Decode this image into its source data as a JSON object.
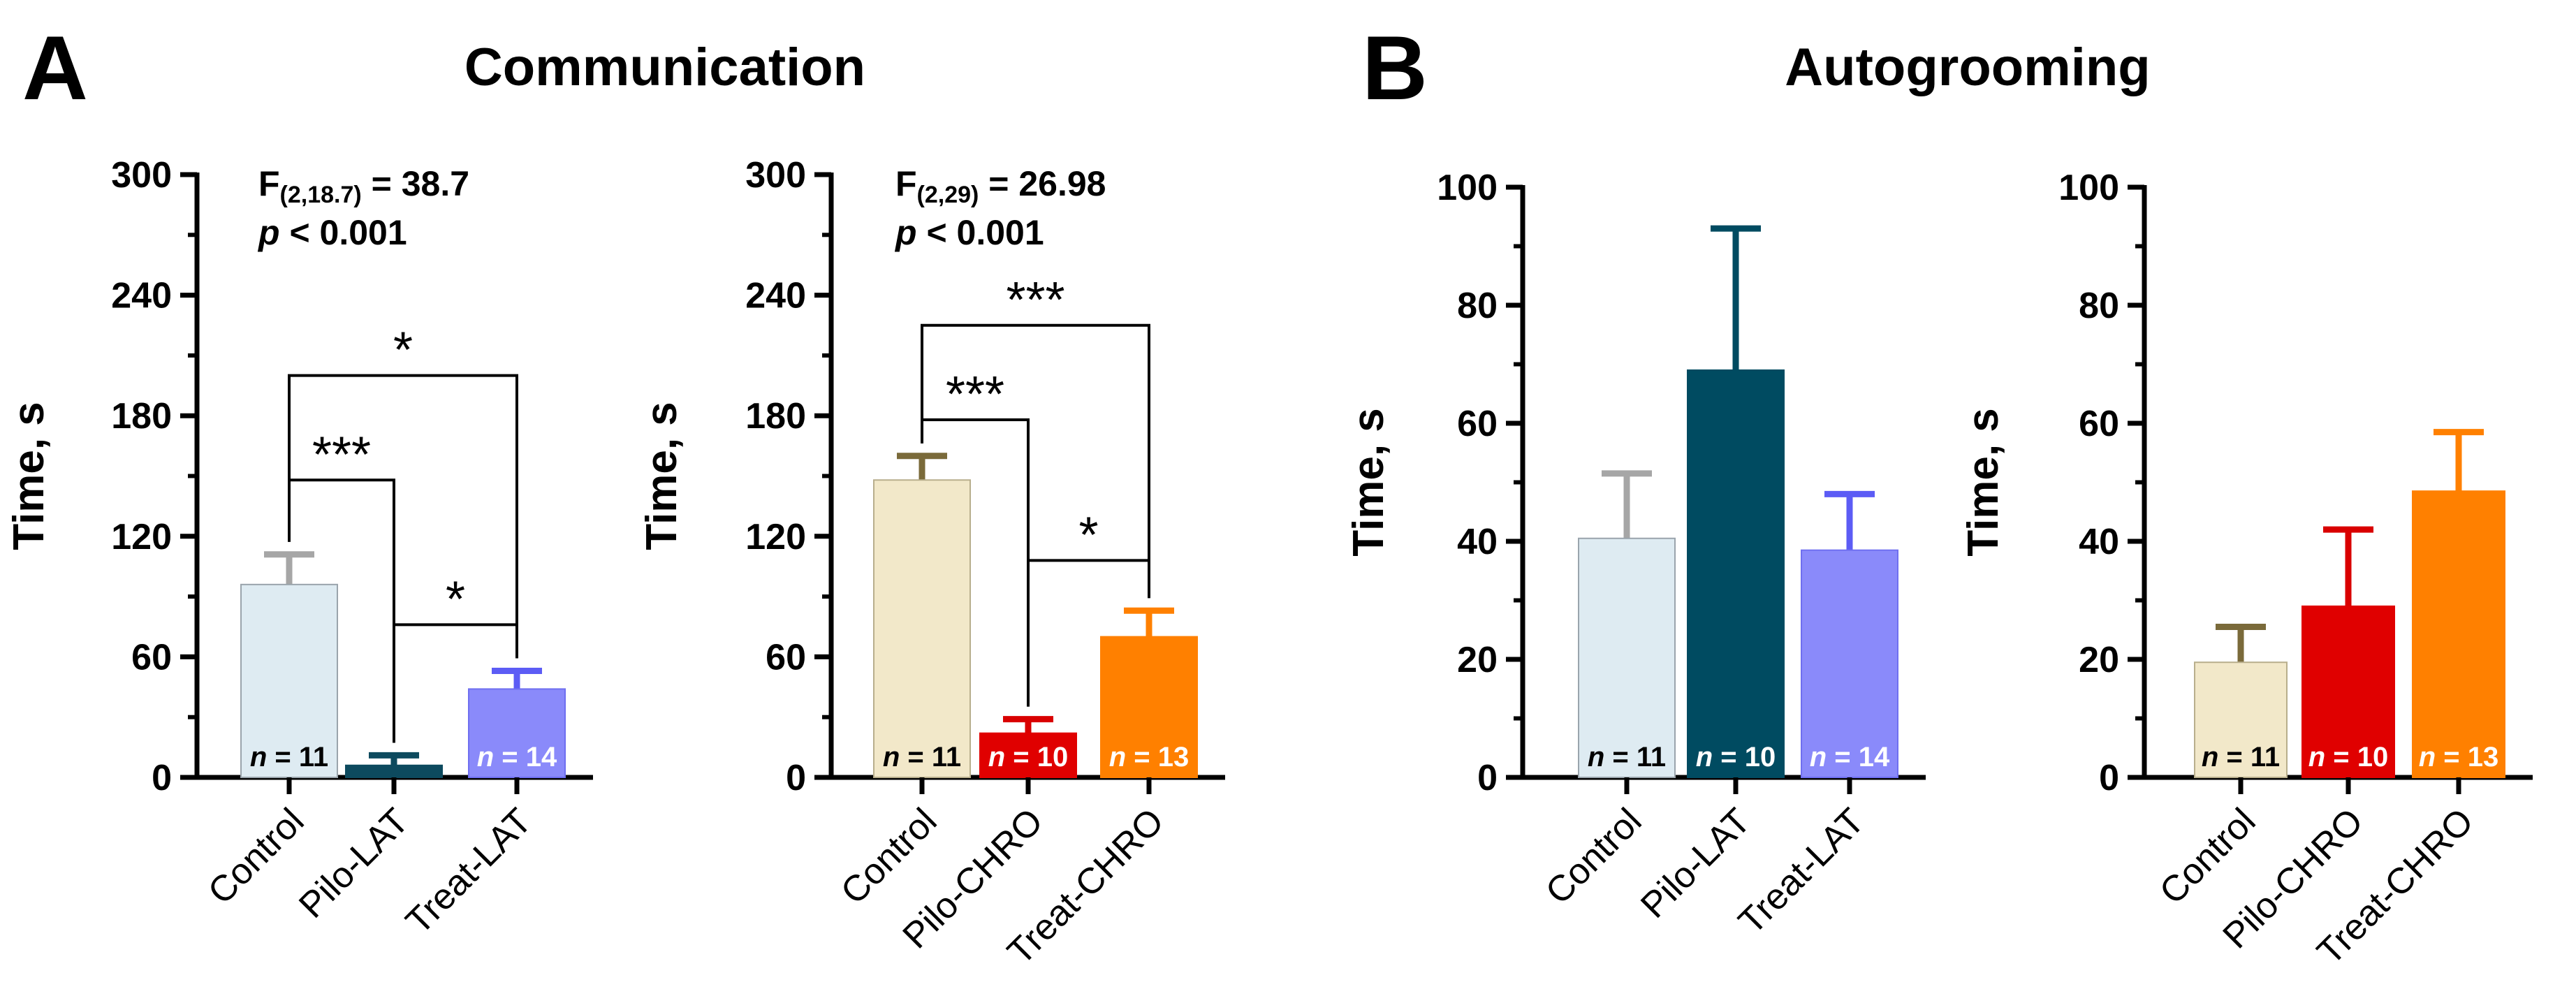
{
  "panels": [
    {
      "letter": "A",
      "title": "Communication"
    },
    {
      "letter": "B",
      "title": "Autogrooming"
    }
  ],
  "chart_data": [
    {
      "type": "bar",
      "panel": "A",
      "ylabel": "Time, s",
      "ylim": [
        0,
        300
      ],
      "yticks": [
        "0",
        "60",
        "120",
        "180",
        "240",
        "300"
      ],
      "categories": [
        "Control",
        "Pilo-LAT",
        "Treat-LAT"
      ],
      "values": [
        96,
        6,
        44
      ],
      "errors": [
        15,
        5,
        9
      ],
      "n_labels": [
        "= 11",
        "",
        "= 14"
      ],
      "n_prefix": "n",
      "colors": [
        "#deebf2",
        "#0d4a5e",
        "#8a8afa"
      ],
      "edge_colors": [
        "#9aa4ac",
        "#0d4a5e",
        "#6f6ff0"
      ],
      "error_colors": [
        "#a6a6a6",
        "#0d4a5e",
        "#5c5cf5"
      ],
      "n_text_colors": [
        "#000000",
        "#ffffff",
        "#ffffff"
      ],
      "stat": {
        "F": "F",
        "df": "(2,18.7)",
        "value": " = 38.7",
        "p": "p",
        "p_text": " < 0.001"
      },
      "comparisons": [
        {
          "from": 0,
          "to": 1,
          "y": 148,
          "label": "***"
        },
        {
          "from": 0,
          "to": 2,
          "y": 200,
          "label": "*"
        },
        {
          "from": 1,
          "to": 2,
          "y": 76,
          "label": "*"
        }
      ]
    },
    {
      "type": "bar",
      "panel": "A",
      "ylabel": "Time, s",
      "ylim": [
        0,
        300
      ],
      "yticks": [
        "0",
        "60",
        "120",
        "180",
        "240",
        "300"
      ],
      "categories": [
        "Control",
        "Pilo-CHRO",
        "Treat-CHRO"
      ],
      "values": [
        148,
        22,
        70
      ],
      "errors": [
        12,
        7,
        13
      ],
      "n_labels": [
        "= 11",
        "= 10",
        "= 13"
      ],
      "n_prefix": "n",
      "colors": [
        "#f2e8c9",
        "#e00000",
        "#ff8000"
      ],
      "edge_colors": [
        "#b8ae8c",
        "#e00000",
        "#ff8000"
      ],
      "error_colors": [
        "#7a6a3a",
        "#d90000",
        "#ff8000"
      ],
      "n_text_colors": [
        "#000000",
        "#ffffff",
        "#ffffff"
      ],
      "stat": {
        "F": "F",
        "df": "(2,29)",
        "value": " = 26.98",
        "p": "p",
        "p_text": " < 0.001"
      },
      "comparisons": [
        {
          "from": 0,
          "to": 1,
          "y": 178,
          "label": "***"
        },
        {
          "from": 0,
          "to": 2,
          "y": 225,
          "label": "***"
        },
        {
          "from": 1,
          "to": 2,
          "y": 108,
          "label": "*"
        }
      ]
    },
    {
      "type": "bar",
      "panel": "B",
      "ylabel": "Time, s",
      "ylim": [
        0,
        100
      ],
      "yticks": [
        "0",
        "20",
        "40",
        "60",
        "80",
        "100"
      ],
      "categories": [
        "Control",
        "Pilo-LAT",
        "Treat-LAT"
      ],
      "values": [
        40.5,
        69,
        38.5
      ],
      "errors": [
        11,
        24,
        9.5
      ],
      "n_labels": [
        "= 11",
        "= 10",
        "= 14"
      ],
      "n_prefix": "n",
      "colors": [
        "#deebf2",
        "#004b61",
        "#8a8afa"
      ],
      "edge_colors": [
        "#9aa4ac",
        "#004b61",
        "#6f6ff0"
      ],
      "error_colors": [
        "#a6a6a6",
        "#004b61",
        "#5c5cf5"
      ],
      "n_text_colors": [
        "#000000",
        "#ffffff",
        "#ffffff"
      ],
      "comparisons": []
    },
    {
      "type": "bar",
      "panel": "B",
      "ylabel": "Time, s",
      "ylim": [
        0,
        100
      ],
      "yticks": [
        "0",
        "20",
        "40",
        "60",
        "80",
        "100"
      ],
      "categories": [
        "Control",
        "Pilo-CHRO",
        "Treat-CHRO"
      ],
      "values": [
        19.5,
        29,
        48.5
      ],
      "errors": [
        6,
        13,
        10
      ],
      "n_labels": [
        "= 11",
        "= 10",
        "= 13"
      ],
      "n_prefix": "n",
      "colors": [
        "#f2e8c9",
        "#e00000",
        "#ff8000"
      ],
      "edge_colors": [
        "#b8ae8c",
        "#e00000",
        "#ff8000"
      ],
      "error_colors": [
        "#7a6a3a",
        "#d90000",
        "#ff8000"
      ],
      "n_text_colors": [
        "#000000",
        "#ffffff",
        "#ffffff"
      ],
      "comparisons": []
    }
  ]
}
